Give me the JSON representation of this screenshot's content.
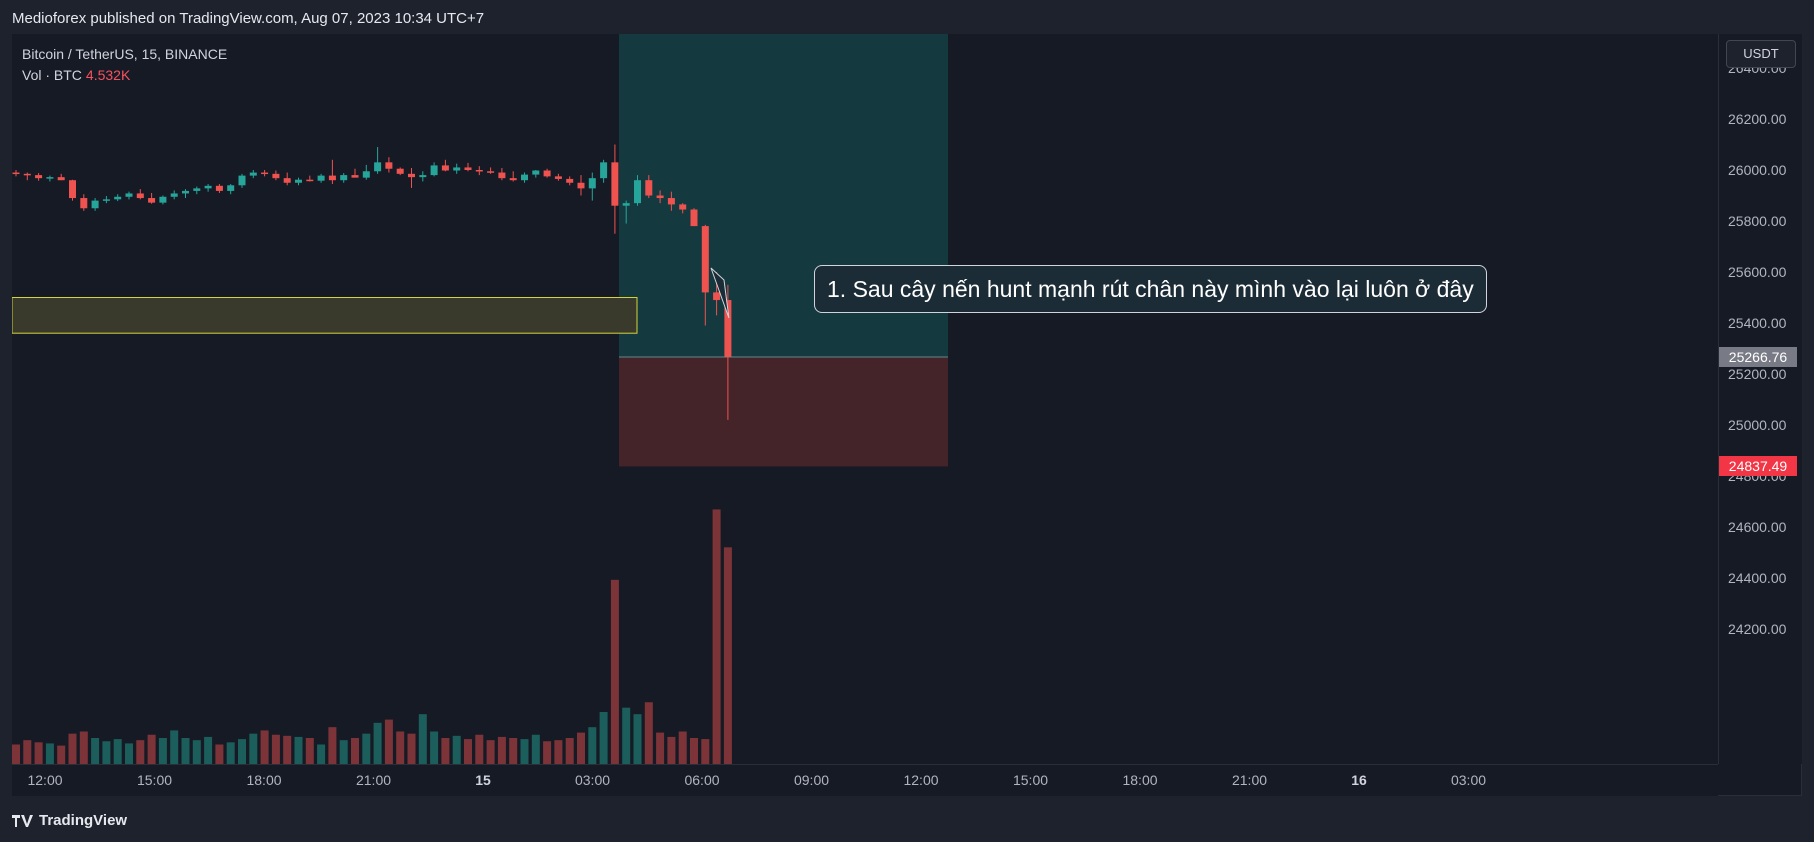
{
  "header": {
    "publisher_line": "Medioforex published on TradingView.com, Aug 07, 2023 10:34 UTC+7"
  },
  "legend": {
    "symbol": "Bitcoin / TetherUS, 15, BINANCE",
    "vol_label": "Vol · BTC",
    "vol_value": "4.532K"
  },
  "currency_button": "USDT",
  "annotation": "1. Sau cây nến hunt mạnh rút chân này mình vào lại luôn ở đây",
  "footer": {
    "brand": "TradingView",
    "logo_icon": "tradingview-logo-icon"
  },
  "colors": {
    "up": "#26a69a",
    "down": "#ef5350",
    "vol_up": "#1b5e5b",
    "vol_down": "#7d3438",
    "profit_zone": "#14393f",
    "loss_zone": "#442329",
    "demand_zone": "#3a3a2c",
    "current_price_bg": "#787b86",
    "stop_price_bg": "#f23645"
  },
  "chart_data": {
    "type": "candlestick",
    "symbol": "BTCUSDT",
    "interval": "15",
    "exchange": "BINANCE",
    "x_axis_ticks": [
      "12:00",
      "15:00",
      "18:00",
      "21:00",
      "15",
      "03:00",
      "06:00",
      "09:00",
      "12:00",
      "15:00",
      "18:00",
      "21:00",
      "16",
      "03:00"
    ],
    "x_axis_bold_ticks": [
      "15",
      "16"
    ],
    "y_axis_ticks": [
      "26400.00",
      "26200.00",
      "26000.00",
      "25800.00",
      "25600.00",
      "25400.00",
      "25200.00",
      "25000.00",
      "24800.00",
      "24600.00",
      "24400.00",
      "24200.00"
    ],
    "ylim": [
      24040,
      26470
    ],
    "price_labels": {
      "entry": "25266.76",
      "stop": "24837.49"
    },
    "position": {
      "type": "long",
      "entry": 25266.76,
      "stop": 24837.49,
      "target": 26550
    },
    "demand_zone": {
      "top": 25500,
      "bottom": 25360
    },
    "candles_ohlc": [
      [
        25990,
        26000,
        25975,
        25985
      ],
      [
        25985,
        25990,
        25960,
        25980
      ],
      [
        25980,
        25988,
        25958,
        25968
      ],
      [
        25968,
        25978,
        25955,
        25972
      ],
      [
        25972,
        25985,
        25960,
        25960
      ],
      [
        25960,
        25962,
        25880,
        25890
      ],
      [
        25890,
        25905,
        25840,
        25850
      ],
      [
        25850,
        25890,
        25840,
        25880
      ],
      [
        25880,
        25898,
        25870,
        25885
      ],
      [
        25885,
        25905,
        25878,
        25895
      ],
      [
        25895,
        25915,
        25885,
        25908
      ],
      [
        25908,
        25925,
        25885,
        25890
      ],
      [
        25890,
        25910,
        25868,
        25872
      ],
      [
        25872,
        25900,
        25865,
        25895
      ],
      [
        25895,
        25920,
        25885,
        25908
      ],
      [
        25908,
        25925,
        25890,
        25918
      ],
      [
        25918,
        25935,
        25905,
        25928
      ],
      [
        25928,
        25945,
        25915,
        25938
      ],
      [
        25938,
        25945,
        25910,
        25918
      ],
      [
        25918,
        25945,
        25905,
        25940
      ],
      [
        25940,
        25985,
        25930,
        25978
      ],
      [
        25978,
        26000,
        25968,
        25990
      ],
      [
        25990,
        26000,
        25975,
        25985
      ],
      [
        25985,
        25998,
        25960,
        25968
      ],
      [
        25968,
        25990,
        25940,
        25950
      ],
      [
        25950,
        25970,
        25940,
        25962
      ],
      [
        25962,
        25978,
        25955,
        25958
      ],
      [
        25958,
        25985,
        25950,
        25978
      ],
      [
        25978,
        26040,
        25945,
        25960
      ],
      [
        25960,
        25988,
        25950,
        25980
      ],
      [
        25980,
        26005,
        25972,
        25970
      ],
      [
        25970,
        26020,
        25962,
        25995
      ],
      [
        25995,
        26090,
        25985,
        26030
      ],
      [
        26030,
        26050,
        25990,
        26005
      ],
      [
        26005,
        26010,
        25980,
        25985
      ],
      [
        25985,
        26008,
        25930,
        25972
      ],
      [
        25972,
        25995,
        25955,
        25980
      ],
      [
        25980,
        26030,
        25975,
        26018
      ],
      [
        26018,
        26040,
        25995,
        25998
      ],
      [
        25998,
        26025,
        25985,
        26010
      ],
      [
        26010,
        26028,
        25995,
        26000
      ],
      [
        26000,
        26015,
        25980,
        25995
      ],
      [
        25995,
        26010,
        25985,
        25990
      ],
      [
        25990,
        26008,
        25960,
        25968
      ],
      [
        25968,
        25995,
        25955,
        25960
      ],
      [
        25960,
        25990,
        25950,
        25982
      ],
      [
        25982,
        26000,
        25970,
        25998
      ],
      [
        25998,
        26005,
        25970,
        25975
      ],
      [
        25975,
        25985,
        25958,
        25965
      ],
      [
        25965,
        25975,
        25940,
        25950
      ],
      [
        25950,
        25980,
        25900,
        25928
      ],
      [
        25928,
        25990,
        25880,
        25968
      ],
      [
        25968,
        26040,
        25950,
        26030
      ],
      [
        26030,
        26100,
        25750,
        25860
      ],
      [
        25860,
        25880,
        25790,
        25870
      ],
      [
        25870,
        25980,
        25860,
        25960
      ],
      [
        25960,
        25980,
        25890,
        25900
      ],
      [
        25900,
        25920,
        25870,
        25890
      ],
      [
        25890,
        25915,
        25840,
        25865
      ],
      [
        25865,
        25870,
        25830,
        25845
      ],
      [
        25845,
        25850,
        25780,
        25780
      ],
      [
        25780,
        25785,
        25390,
        25520
      ],
      [
        25520,
        25600,
        25430,
        25490
      ],
      [
        25490,
        25550,
        25020,
        25266.76
      ]
    ],
    "volume": [
      18,
      22,
      20,
      19,
      17,
      28,
      30,
      24,
      21,
      23,
      19,
      22,
      27,
      24,
      31,
      24,
      22,
      25,
      18,
      20,
      23,
      28,
      31,
      27,
      26,
      25,
      24,
      18,
      34,
      22,
      24,
      28,
      38,
      41,
      30,
      28,
      46,
      30,
      24,
      26,
      23,
      27,
      22,
      25,
      24,
      23,
      27,
      21,
      22,
      24,
      29,
      34,
      48,
      170,
      52,
      46,
      57,
      29,
      25,
      30,
      24,
      23,
      235,
      200
    ],
    "vol_max": 240
  }
}
